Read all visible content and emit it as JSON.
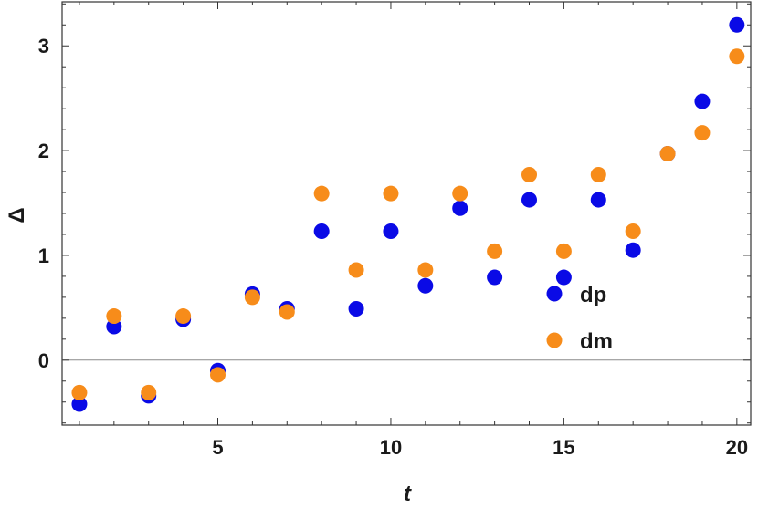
{
  "chart_data": {
    "type": "scatter",
    "title": "",
    "xlabel": "t",
    "ylabel": "Δ",
    "xlim": [
      0.5,
      20.4
    ],
    "ylim": [
      -0.62,
      3.42
    ],
    "xticks": [
      5,
      10,
      15,
      20
    ],
    "xtick_labels": [
      "5",
      "10",
      "15",
      "20"
    ],
    "yticks": [
      0,
      1,
      2,
      3
    ],
    "ytick_labels": [
      "0",
      "1",
      "2",
      "3"
    ],
    "grid": false,
    "zero_line": true,
    "legend_position": "right-center",
    "series": [
      {
        "name": "dp",
        "color": "#0a0ae6",
        "x": [
          1,
          2,
          3,
          4,
          5,
          6,
          7,
          8,
          9,
          10,
          11,
          12,
          13,
          14,
          15,
          16,
          17,
          18,
          19,
          20
        ],
        "y": [
          -0.42,
          0.32,
          -0.34,
          0.39,
          -0.1,
          0.63,
          0.49,
          1.23,
          0.49,
          1.23,
          0.71,
          1.45,
          0.79,
          1.53,
          0.79,
          1.53,
          1.05,
          1.97,
          2.47,
          3.2
        ]
      },
      {
        "name": "dm",
        "color": "#f78c1a",
        "x": [
          1,
          2,
          3,
          4,
          5,
          6,
          7,
          8,
          9,
          10,
          11,
          12,
          13,
          14,
          15,
          16,
          17,
          18,
          19,
          20
        ],
        "y": [
          -0.31,
          0.42,
          -0.31,
          0.42,
          -0.14,
          0.6,
          0.46,
          1.59,
          0.86,
          1.59,
          0.86,
          1.59,
          1.04,
          1.77,
          1.04,
          1.77,
          1.23,
          1.97,
          2.17,
          2.9
        ]
      }
    ]
  }
}
